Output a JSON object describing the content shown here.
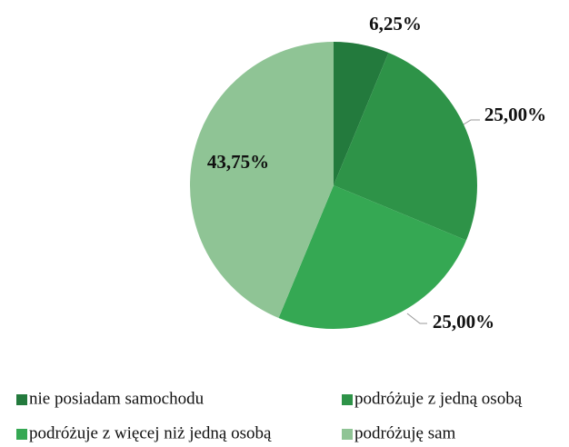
{
  "chart_data": {
    "type": "pie",
    "categories": [
      "nie posiadam samochodu",
      "podróżuje z jedną osobą",
      "podróżuje z więcej niż jedną osobą",
      "podróżuję sam"
    ],
    "values": [
      6.25,
      25,
      25,
      43.75
    ],
    "value_labels": [
      "6,25%",
      "25,00%",
      "25,00%",
      "43,75%"
    ],
    "colors": [
      "#237a3d",
      "#2e9348",
      "#35a853",
      "#8fc495"
    ],
    "legend": "bottom"
  }
}
